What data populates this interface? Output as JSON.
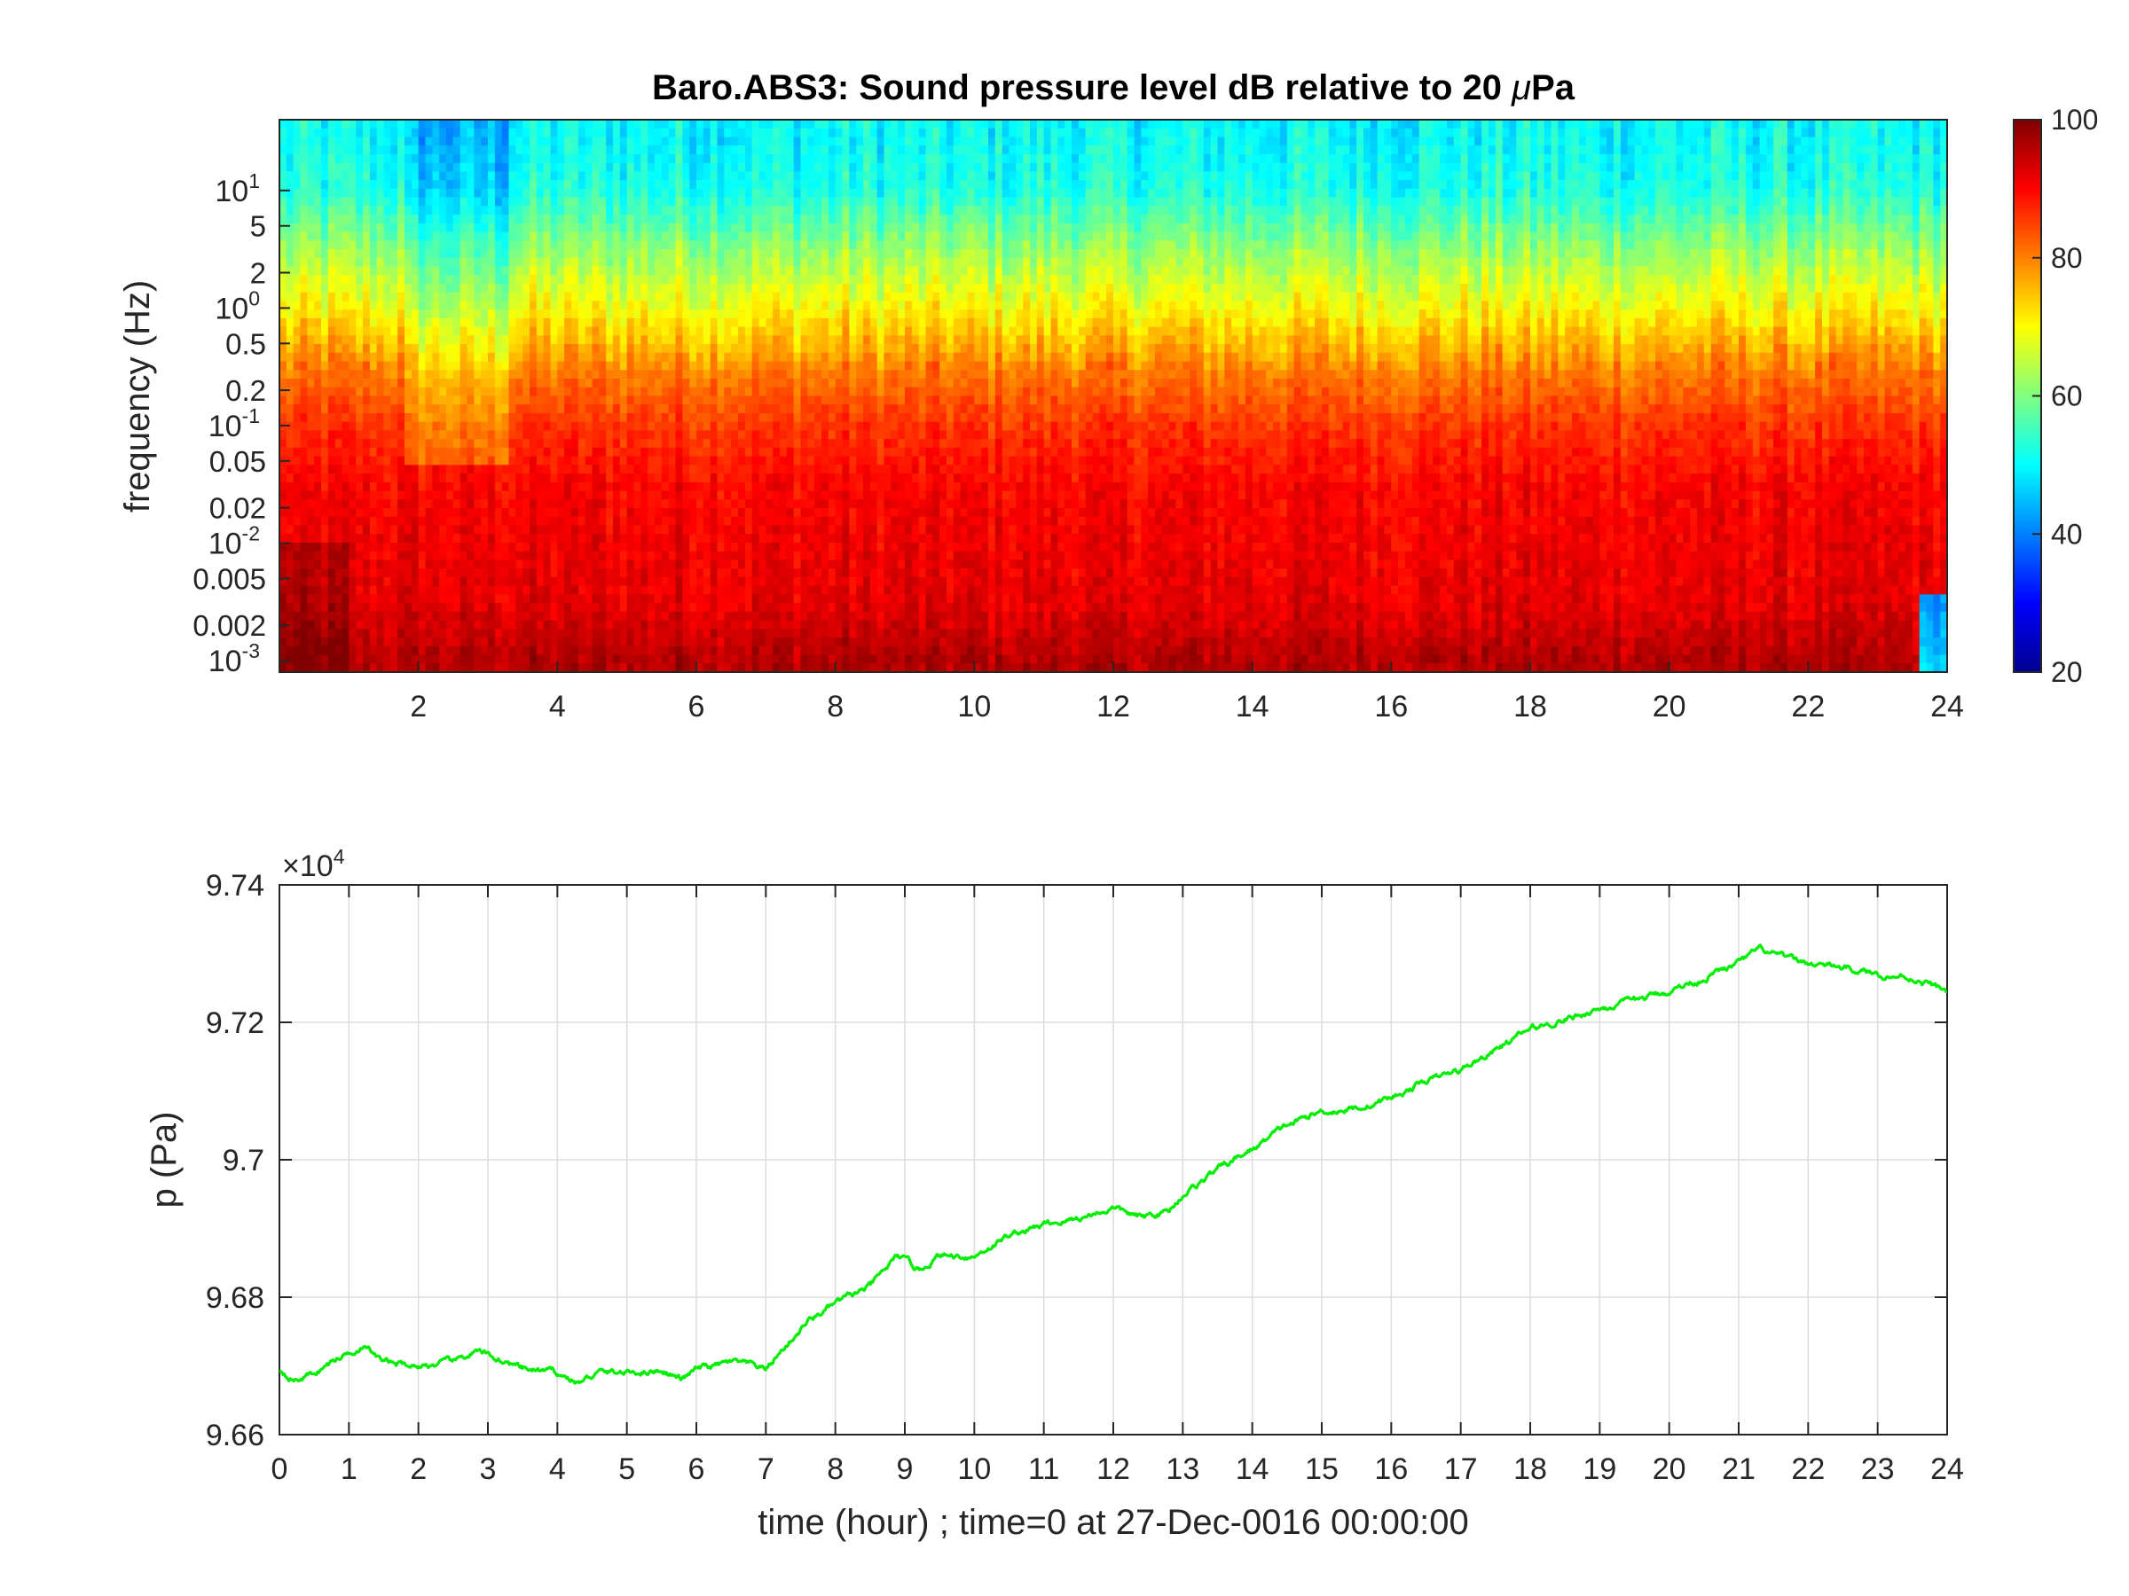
{
  "chart_data": [
    {
      "type": "heatmap",
      "title_prefix": "Baro.ABS3: Sound pressure level dB relative to 20 ",
      "title_mu": "μ",
      "title_suffix": "Pa",
      "xlabel": "",
      "ylabel": "frequency (Hz)",
      "xlim": [
        0,
        24
      ],
      "x_ticks": [
        "2",
        "4",
        "6",
        "8",
        "10",
        "12",
        "14",
        "16",
        "18",
        "20",
        "22",
        "24"
      ],
      "y_scale": "log",
      "ylim": [
        0.0008,
        40
      ],
      "y_tick_powers": [
        {
          "base": "10",
          "exp": "1",
          "value": 10
        },
        {
          "base": "10",
          "exp": "0",
          "value": 1
        },
        {
          "base": "10",
          "exp": "-1",
          "value": 0.1
        },
        {
          "base": "10",
          "exp": "-2",
          "value": 0.01
        },
        {
          "base": "10",
          "exp": "-3",
          "value": 0.001
        }
      ],
      "y_tick_decimals": [
        {
          "label": "5",
          "value": 5
        },
        {
          "label": "2",
          "value": 2
        },
        {
          "label": "0.5",
          "value": 0.5
        },
        {
          "label": "0.2",
          "value": 0.2
        },
        {
          "label": "0.05",
          "value": 0.05
        },
        {
          "label": "0.02",
          "value": 0.02
        },
        {
          "label": "0.005",
          "value": 0.005
        },
        {
          "label": "0.002",
          "value": 0.002
        }
      ],
      "colormap": "jet",
      "colorbar": {
        "min": 20,
        "max": 100,
        "ticks": [
          "100",
          "80",
          "60",
          "40",
          "20"
        ]
      },
      "level_profile_db": [
        {
          "frequency_hz": 30,
          "db": 50
        },
        {
          "frequency_hz": 10,
          "db": 52
        },
        {
          "frequency_hz": 3,
          "db": 62
        },
        {
          "frequency_hz": 1,
          "db": 70
        },
        {
          "frequency_hz": 0.3,
          "db": 80
        },
        {
          "frequency_hz": 0.1,
          "db": 86
        },
        {
          "frequency_hz": 0.03,
          "db": 90
        },
        {
          "frequency_hz": 0.01,
          "db": 91
        },
        {
          "frequency_hz": 0.003,
          "db": 92
        },
        {
          "frequency_hz": 0.001,
          "db": 96
        }
      ]
    },
    {
      "type": "line",
      "xlabel": "time (hour) ; time=0 at 27-Dec-0016 00:00:00",
      "ylabel": "p (Pa)",
      "xlim": [
        0,
        24
      ],
      "ylim": [
        96600,
        97400
      ],
      "x_ticks": [
        "0",
        "1",
        "2",
        "3",
        "4",
        "5",
        "6",
        "7",
        "8",
        "9",
        "10",
        "11",
        "12",
        "13",
        "14",
        "15",
        "16",
        "17",
        "18",
        "19",
        "20",
        "21",
        "22",
        "23",
        "24"
      ],
      "y_ticks": [
        "9.66",
        "9.68",
        "9.7",
        "9.72",
        "9.74"
      ],
      "y_multiplier": {
        "base": "×10",
        "exp": "4"
      },
      "grid": true,
      "series": [
        {
          "color": "#00ee00",
          "x": [
            0,
            0.25,
            0.5,
            1.0,
            1.2,
            1.5,
            2.0,
            2.5,
            2.8,
            3.0,
            3.5,
            4.0,
            4.3,
            4.6,
            5.0,
            5.5,
            5.8,
            6.0,
            6.5,
            6.8,
            7.0,
            7.3,
            7.6,
            8.0,
            8.5,
            8.9,
            9.2,
            9.5,
            10.0,
            10.5,
            11.0,
            11.5,
            12.0,
            12.4,
            12.8,
            13.0,
            13.5,
            14.0,
            14.5,
            15.0,
            15.5,
            16.0,
            16.5,
            17.0,
            17.5,
            18.0,
            18.5,
            19.0,
            19.5,
            20.0,
            20.5,
            21.0,
            21.3,
            21.6,
            22.0,
            22.5,
            23.0,
            23.5,
            24.0
          ],
          "y": [
            96695,
            96680,
            96690,
            96720,
            96730,
            96705,
            96700,
            96705,
            96720,
            96715,
            96695,
            96690,
            96675,
            96690,
            96690,
            96695,
            96680,
            96695,
            96705,
            96700,
            96695,
            96730,
            96765,
            96790,
            96815,
            96860,
            96840,
            96860,
            96860,
            96890,
            96905,
            96915,
            96930,
            96915,
            96925,
            96950,
            96985,
            97015,
            97050,
            97070,
            97075,
            97090,
            97115,
            97130,
            97160,
            97190,
            97205,
            97220,
            97230,
            97245,
            97265,
            97285,
            97305,
            97295,
            97285,
            97280,
            97270,
            97265,
            97245
          ]
        }
      ]
    }
  ]
}
